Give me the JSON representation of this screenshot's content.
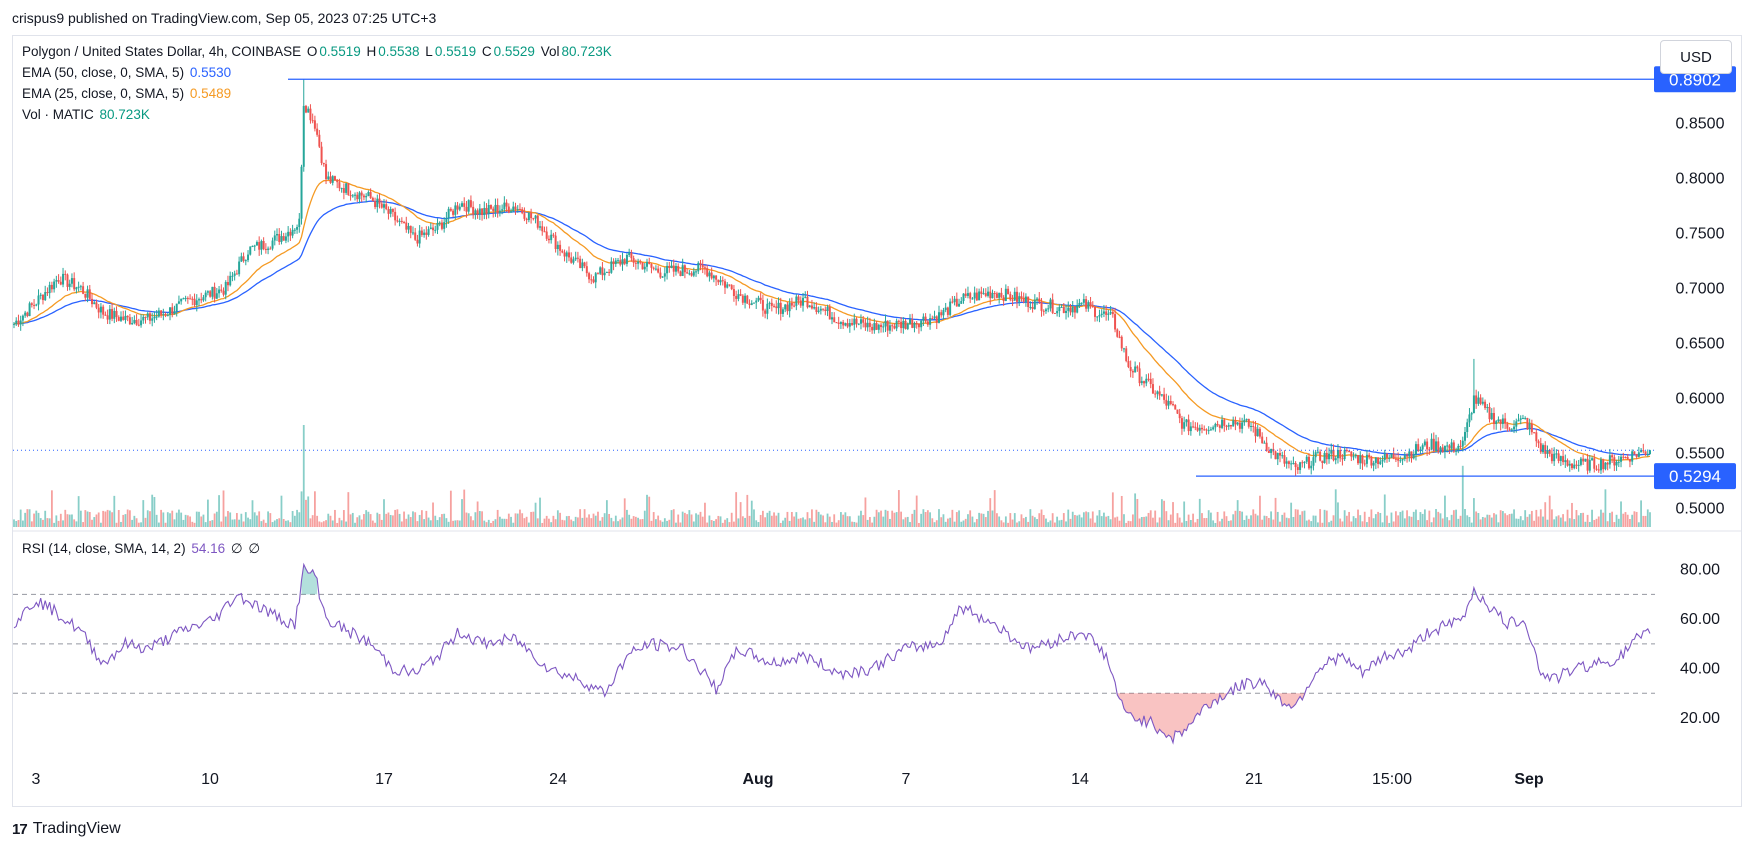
{
  "header": {
    "published": "crispus9 published on TradingView.com, Sep 05, 2023 07:25 UTC+3"
  },
  "legend": {
    "symbol": "Polygon / United States Dollar, 4h, COINBASE",
    "o_label": "O",
    "o": "0.5519",
    "h_label": "H",
    "h": "0.5538",
    "l_label": "L",
    "l": "0.5519",
    "c_label": "C",
    "c": "0.5529",
    "vol_label": "Vol",
    "vol": "80.723K",
    "ema50_label": "EMA (50, close, 0, SMA, 5)",
    "ema50_value": "0.5530",
    "ema25_label": "EMA (25, close, 0, SMA, 5)",
    "ema25_value": "0.5489",
    "volume_label": "Vol · MATIC",
    "volume_value": "80.723K",
    "rsi_label": "RSI (14, close, SMA, 14, 2)",
    "rsi_value": "54.16",
    "rsi_extra1": "∅",
    "rsi_extra2": "∅"
  },
  "currency_button": "USD",
  "footer": {
    "brand": "TradingView",
    "mark": "17"
  },
  "colors": {
    "up": "#26a69a",
    "down": "#ef5350",
    "ema50": "#2962ff",
    "ema25": "#f59a23",
    "rsi": "#7e57c2",
    "level_line": "#2962ff",
    "label_bg": "#2962ff"
  },
  "chart_data": [
    {
      "type": "candlestick",
      "title": "Polygon / United States Dollar, 4h, COINBASE",
      "ylim": [
        0.495,
        0.895
      ],
      "y_ticks": [
        "0.5000",
        "0.5500",
        "0.6000",
        "0.6500",
        "0.7000",
        "0.7500",
        "0.8000",
        "0.8500"
      ],
      "x_ticks": [
        "3",
        "10",
        "17",
        "24",
        "Aug",
        "7",
        "14",
        "21",
        "15:00",
        "Sep"
      ],
      "price_levels": [
        {
          "label": "0.8902",
          "value": 0.8902
        },
        {
          "label": "0.5294",
          "value": 0.5294
        }
      ],
      "current_price": 0.5529,
      "anchor_closes": [
        [
          0,
          0.668
        ],
        [
          10,
          0.688
        ],
        [
          20,
          0.71
        ],
        [
          30,
          0.7
        ],
        [
          40,
          0.678
        ],
        [
          50,
          0.672
        ],
        [
          60,
          0.672
        ],
        [
          70,
          0.68
        ],
        [
          80,
          0.69
        ],
        [
          95,
          0.7
        ],
        [
          105,
          0.735
        ],
        [
          115,
          0.742
        ],
        [
          122,
          0.75
        ],
        [
          128,
          0.76
        ],
        [
          130,
          0.87
        ],
        [
          135,
          0.85
        ],
        [
          140,
          0.8
        ],
        [
          150,
          0.79
        ],
        [
          160,
          0.782
        ],
        [
          170,
          0.765
        ],
        [
          180,
          0.745
        ],
        [
          190,
          0.755
        ],
        [
          200,
          0.778
        ],
        [
          210,
          0.77
        ],
        [
          225,
          0.775
        ],
        [
          235,
          0.76
        ],
        [
          248,
          0.73
        ],
        [
          260,
          0.71
        ],
        [
          275,
          0.728
        ],
        [
          290,
          0.715
        ],
        [
          310,
          0.718
        ],
        [
          325,
          0.695
        ],
        [
          340,
          0.68
        ],
        [
          355,
          0.69
        ],
        [
          370,
          0.672
        ],
        [
          385,
          0.665
        ],
        [
          400,
          0.668
        ],
        [
          415,
          0.675
        ],
        [
          425,
          0.69
        ],
        [
          440,
          0.697
        ],
        [
          455,
          0.688
        ],
        [
          470,
          0.682
        ],
        [
          480,
          0.685
        ],
        [
          493,
          0.672
        ],
        [
          500,
          0.63
        ],
        [
          510,
          0.61
        ],
        [
          520,
          0.59
        ],
        [
          525,
          0.575
        ],
        [
          535,
          0.575
        ],
        [
          545,
          0.58
        ],
        [
          555,
          0.575
        ],
        [
          565,
          0.55
        ],
        [
          575,
          0.535
        ],
        [
          583,
          0.545
        ],
        [
          595,
          0.55
        ],
        [
          605,
          0.545
        ],
        [
          615,
          0.545
        ],
        [
          625,
          0.55
        ],
        [
          635,
          0.558
        ],
        [
          645,
          0.555
        ],
        [
          650,
          0.558
        ],
        [
          655,
          0.6
        ],
        [
          662,
          0.585
        ],
        [
          670,
          0.575
        ],
        [
          678,
          0.58
        ],
        [
          685,
          0.555
        ],
        [
          692,
          0.545
        ],
        [
          700,
          0.54
        ],
        [
          710,
          0.54
        ],
        [
          720,
          0.545
        ],
        [
          728,
          0.55
        ],
        [
          734,
          0.5529
        ]
      ],
      "volume_spikes": [
        [
          130,
          1.0
        ],
        [
          650,
          0.6
        ],
        [
          525,
          0.25
        ],
        [
          135,
          0.35
        ]
      ],
      "series": [
        {
          "name": "EMA (50, close, 0, SMA, 5)",
          "last": 0.553
        },
        {
          "name": "EMA (25, close, 0, SMA, 5)",
          "last": 0.5489
        }
      ]
    },
    {
      "type": "line",
      "title": "RSI (14, close, SMA, 14, 2)",
      "ylim": [
        5,
        90
      ],
      "y_ticks": [
        "20.00",
        "40.00",
        "60.00",
        "80.00"
      ],
      "bands": [
        70,
        50,
        30
      ],
      "anchor_values": [
        [
          0,
          58
        ],
        [
          10,
          68
        ],
        [
          20,
          62
        ],
        [
          30,
          55
        ],
        [
          40,
          42
        ],
        [
          50,
          50
        ],
        [
          60,
          48
        ],
        [
          75,
          55
        ],
        [
          90,
          60
        ],
        [
          100,
          70
        ],
        [
          110,
          65
        ],
        [
          120,
          60
        ],
        [
          126,
          58
        ],
        [
          130,
          80
        ],
        [
          135,
          78
        ],
        [
          140,
          60
        ],
        [
          150,
          55
        ],
        [
          160,
          50
        ],
        [
          170,
          40
        ],
        [
          180,
          38
        ],
        [
          190,
          45
        ],
        [
          200,
          55
        ],
        [
          210,
          50
        ],
        [
          225,
          52
        ],
        [
          240,
          40
        ],
        [
          255,
          35
        ],
        [
          265,
          30
        ],
        [
          275,
          45
        ],
        [
          285,
          50
        ],
        [
          300,
          48
        ],
        [
          315,
          32
        ],
        [
          325,
          48
        ],
        [
          340,
          42
        ],
        [
          355,
          45
        ],
        [
          370,
          38
        ],
        [
          385,
          40
        ],
        [
          400,
          48
        ],
        [
          415,
          50
        ],
        [
          425,
          65
        ],
        [
          440,
          58
        ],
        [
          455,
          48
        ],
        [
          470,
          52
        ],
        [
          480,
          55
        ],
        [
          490,
          45
        ],
        [
          498,
          22
        ],
        [
          510,
          18
        ],
        [
          520,
          12
        ],
        [
          525,
          15
        ],
        [
          535,
          25
        ],
        [
          550,
          33
        ],
        [
          560,
          35
        ],
        [
          568,
          27
        ],
        [
          575,
          25
        ],
        [
          585,
          40
        ],
        [
          595,
          45
        ],
        [
          605,
          38
        ],
        [
          615,
          45
        ],
        [
          625,
          47
        ],
        [
          635,
          55
        ],
        [
          645,
          58
        ],
        [
          650,
          60
        ],
        [
          655,
          72
        ],
        [
          662,
          65
        ],
        [
          670,
          58
        ],
        [
          678,
          60
        ],
        [
          685,
          38
        ],
        [
          692,
          36
        ],
        [
          700,
          40
        ],
        [
          710,
          42
        ],
        [
          720,
          44
        ],
        [
          728,
          52
        ],
        [
          734,
          54.16
        ]
      ]
    }
  ]
}
